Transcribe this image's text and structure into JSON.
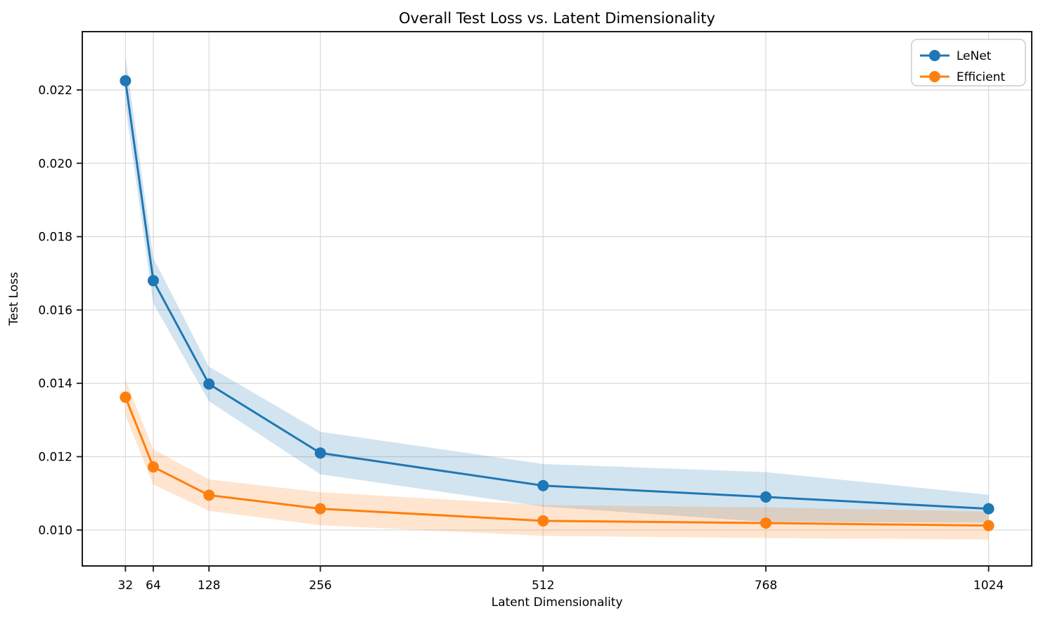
{
  "chart_data": {
    "type": "line",
    "title": "Overall Test Loss vs. Latent Dimensionality",
    "xlabel": "Latent Dimensionality",
    "ylabel": "Test Loss",
    "grid": true,
    "legend_position": "upper right",
    "x": [
      32,
      64,
      128,
      256,
      512,
      768,
      1024
    ],
    "x_ticks": [
      32,
      64,
      128,
      256,
      512,
      768,
      1024
    ],
    "x_tick_labels": [
      "32",
      "64",
      "128",
      "256",
      "512",
      "768",
      "1024"
    ],
    "y_ticks": [
      0.01,
      0.012,
      0.014,
      0.016,
      0.018,
      0.02,
      0.022
    ],
    "y_tick_labels": [
      "0.010",
      "0.012",
      "0.014",
      "0.016",
      "0.018",
      "0.020",
      "0.022"
    ],
    "xlim": [
      -17.6,
      1073.6
    ],
    "ylim": [
      0.00902,
      0.02359
    ],
    "series": [
      {
        "name": "LeNet",
        "color": "#1f77b4",
        "band_opacity": 0.2,
        "values": [
          0.02225,
          0.0168,
          0.01398,
          0.0121,
          0.01121,
          0.0109,
          0.01058
        ],
        "band_upper": [
          0.02293,
          0.01742,
          0.01445,
          0.01268,
          0.0118,
          0.01158,
          0.01096
        ],
        "band_lower": [
          0.02157,
          0.01618,
          0.01351,
          0.01152,
          0.01064,
          0.01022,
          0.0102
        ]
      },
      {
        "name": "Efficient",
        "color": "#ff7f0e",
        "band_opacity": 0.2,
        "values": [
          0.01362,
          0.01172,
          0.01095,
          0.01058,
          0.01025,
          0.01019,
          0.01012
        ],
        "band_upper": [
          0.0141,
          0.0122,
          0.01138,
          0.01103,
          0.01068,
          0.01062,
          0.0105
        ],
        "band_lower": [
          0.01312,
          0.01124,
          0.01052,
          0.01013,
          0.00984,
          0.00978,
          0.00974
        ]
      }
    ]
  }
}
